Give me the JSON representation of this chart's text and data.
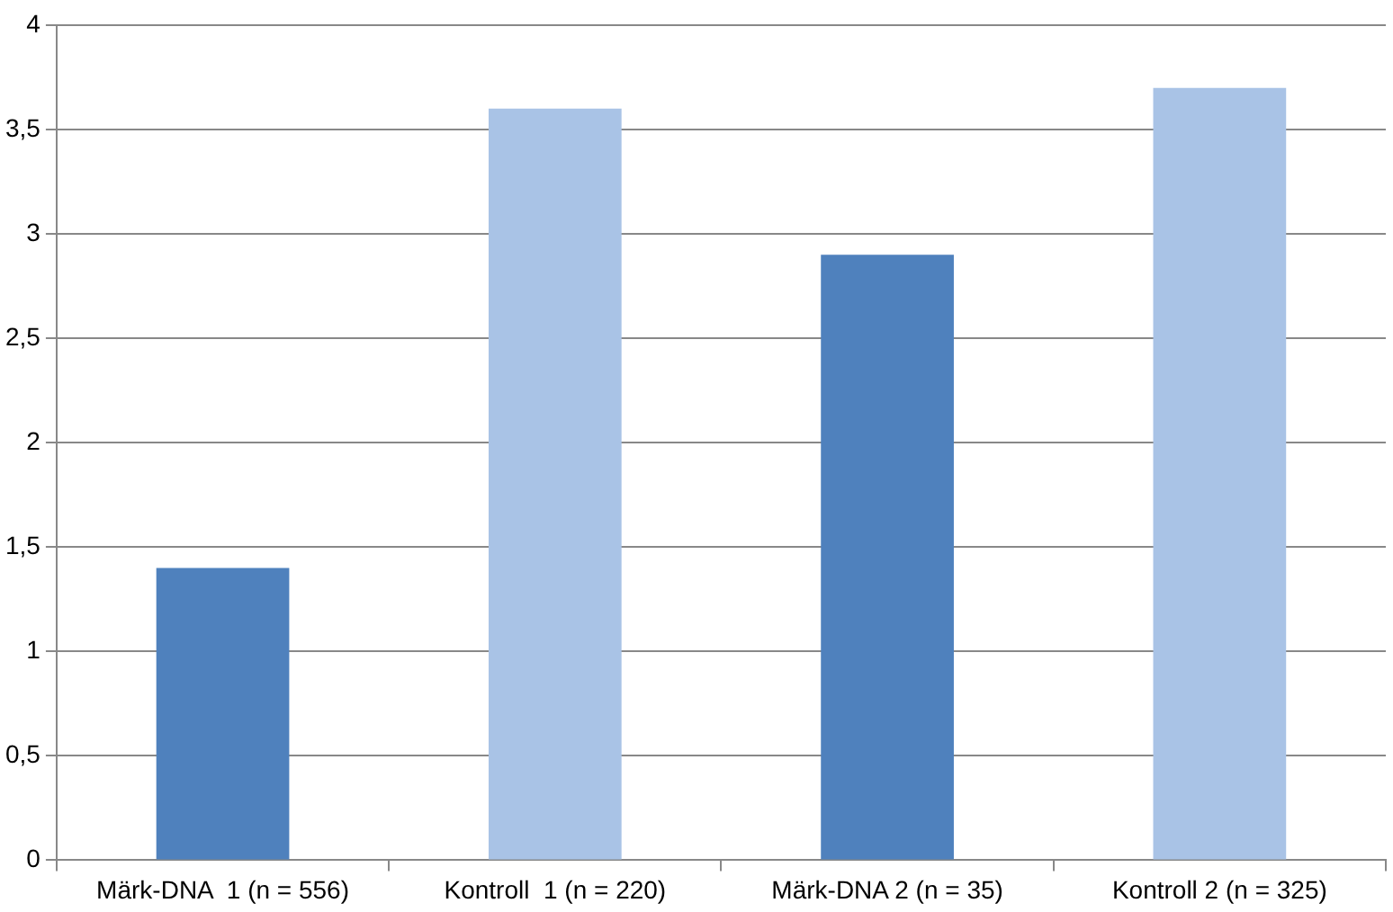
{
  "chart_data": {
    "type": "bar",
    "categories": [
      "Märk-DNA  1 (n = 556)",
      "Kontroll  1 (n = 220)",
      "Märk-DNA 2 (n = 35)",
      "Kontroll 2 (n = 325)"
    ],
    "values": [
      1.4,
      3.6,
      2.9,
      3.7
    ],
    "colors": [
      "#4f81bd",
      "#a9c3e6",
      "#4f81bd",
      "#a9c3e6"
    ],
    "ylim": [
      0,
      4
    ],
    "yticks": [
      0,
      {
        "value": 0.5,
        "label": "0,5"
      },
      1,
      {
        "value": 1.5,
        "label": "1,5"
      },
      2,
      {
        "value": 2.5,
        "label": "2,5"
      },
      3,
      {
        "value": 3.5,
        "label": "3,5"
      },
      4
    ],
    "grid": "y",
    "legend": false
  }
}
